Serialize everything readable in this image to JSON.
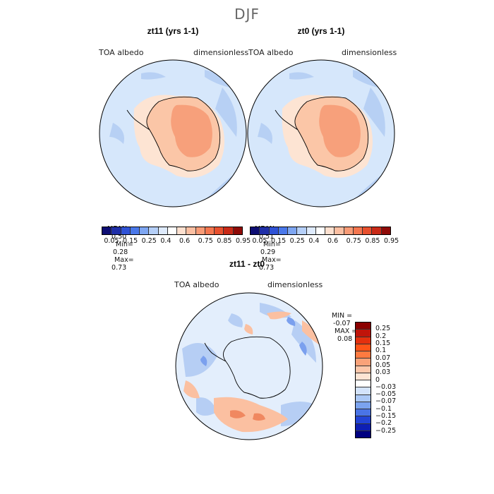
{
  "figure": {
    "title": "DJF"
  },
  "panels": [
    {
      "title": "zt11 (yrs 1-1)",
      "variable": "TOA albedo",
      "units": "dimensionless",
      "stats": {
        "mean_label": "MEAN=",
        "mean": "0.50",
        "min_label": "Min=",
        "min": "0.28",
        "max_label": "Max=",
        "max": "0.73"
      }
    },
    {
      "title": "zt0 (yrs 1-1)",
      "variable": "TOA albedo",
      "units": "dimensionless",
      "stats": {
        "mean_label": "MEAN=",
        "mean": "0.51",
        "min_label": "Min=",
        "min": "0.29",
        "max_label": "Max=",
        "max": "0.73"
      }
    }
  ],
  "diff_panel": {
    "title": "zt11 - zt0",
    "variable": "TOA albedo",
    "units": "dimensionless",
    "min_label": "MIN =",
    "min": "-0.07",
    "max_label": "MAX =",
    "max": "0.08"
  },
  "colorbar_top": {
    "ticks": [
      "0.05",
      "0.15",
      "0.25",
      "0.4",
      "0.6",
      "0.75",
      "0.85",
      "0.95"
    ],
    "colors": [
      "#0d0d73",
      "#1f2fa8",
      "#2f52d6",
      "#4a78ea",
      "#7ea6f2",
      "#b5cff8",
      "#deeafc",
      "#ffffff",
      "#fde0cf",
      "#fbbfa2",
      "#f89b76",
      "#f4764f",
      "#e8502e",
      "#c92a17",
      "#8f0b08"
    ]
  },
  "colorbar_diff": {
    "ticks": [
      "0.25",
      "0.2",
      "0.15",
      "0.1",
      "0.07",
      "0.05",
      "0.03",
      "0",
      "−0.03",
      "−0.05",
      "−0.07",
      "−0.1",
      "−0.15",
      "−0.2",
      "−0.25"
    ],
    "colors": [
      "#8b0000",
      "#c0140a",
      "#e4300e",
      "#ff5418",
      "#ff7a40",
      "#f9a279",
      "#fcc7aa",
      "#fde4d3",
      "#ffffff",
      "#d3e3fb",
      "#abc8f6",
      "#7ba3ef",
      "#4a74e6",
      "#2344d6",
      "#0e1fb4",
      "#000080"
    ]
  },
  "map_colors": {
    "ocean": "#d6e7fb",
    "ocean_dark": "#b7d0f4",
    "land": "#fbc6a7",
    "land_inner": "#f7a07b",
    "shelf": "#fde4d3",
    "diff_bg": "#e3eefc",
    "diff_blue": "#b6cef4",
    "diff_red": "#fbc0a1",
    "diff_red_dark": "#f08860",
    "diff_blue_dark": "#7ba0ee"
  }
}
